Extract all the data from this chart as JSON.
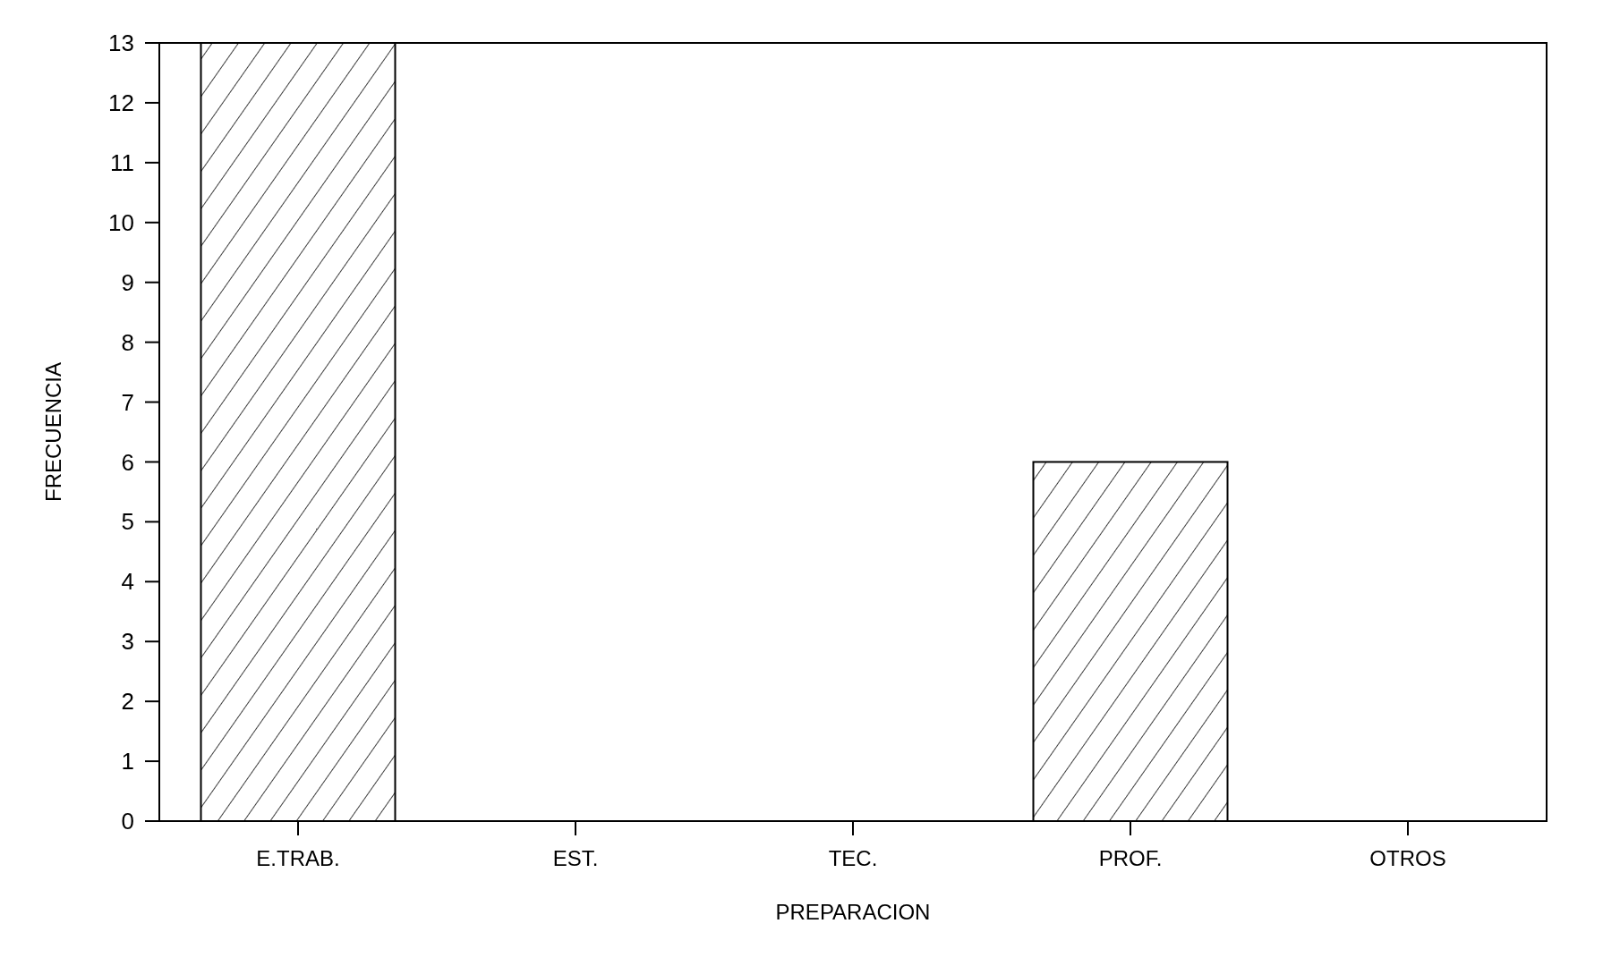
{
  "chart_data": {
    "type": "bar",
    "xlabel": "PREPARACION",
    "ylabel": "FRECUENCIA",
    "categories": [
      "E.TRAB.",
      "EST.",
      "TEC.",
      "PROF.",
      "OTROS"
    ],
    "values": [
      13,
      0,
      0,
      6,
      0
    ],
    "color": "#000000",
    "ylim": [
      0,
      13
    ],
    "yticks": [
      0,
      1,
      2,
      3,
      4,
      5,
      6,
      7,
      8,
      9,
      10,
      11,
      12,
      13
    ],
    "grid": false
  }
}
